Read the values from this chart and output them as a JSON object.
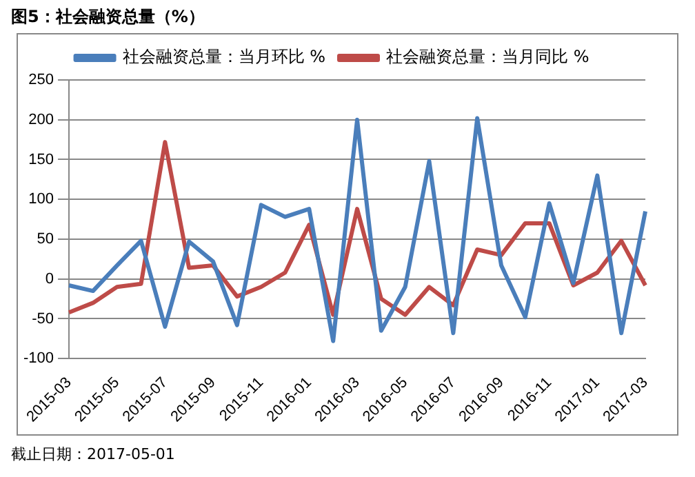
{
  "chart_data": {
    "type": "line",
    "title": "图5：社会融资总量（%）",
    "categories": [
      "2015-03",
      null,
      "2015-05",
      null,
      "2015-07",
      null,
      "2015-09",
      null,
      "2015-11",
      null,
      "2016-01",
      null,
      "2016-03",
      null,
      "2016-05",
      null,
      "2016-07",
      null,
      "2016-09",
      null,
      "2016-11",
      null,
      "2017-01",
      null,
      "2017-03"
    ],
    "series": [
      {
        "name": "社会融资总量：当月环比 %",
        "color": "#4a7ebb",
        "values": [
          -8,
          -15,
          17,
          48,
          -60,
          47,
          22,
          -58,
          93,
          78,
          88,
          -78,
          200,
          -65,
          -10,
          148,
          -68,
          202,
          17,
          -48,
          95,
          -5,
          130,
          -68,
          85
        ]
      },
      {
        "name": "社会融资总量：当月同比 %",
        "color": "#be4b48",
        "values": [
          -42,
          -30,
          -10,
          -6,
          172,
          14,
          17,
          -22,
          -10,
          8,
          68,
          -45,
          88,
          -25,
          -45,
          -10,
          -33,
          37,
          30,
          70,
          70,
          -8,
          8,
          48,
          -8
        ]
      }
    ],
    "ylim": [
      -100,
      250
    ],
    "yticks": [
      -100,
      -50,
      0,
      50,
      100,
      150,
      200,
      250
    ],
    "grid": "y",
    "legend": "top",
    "marker": "none",
    "line_style": "solid",
    "annotations": [
      "截止日期：2017-05-01"
    ]
  }
}
